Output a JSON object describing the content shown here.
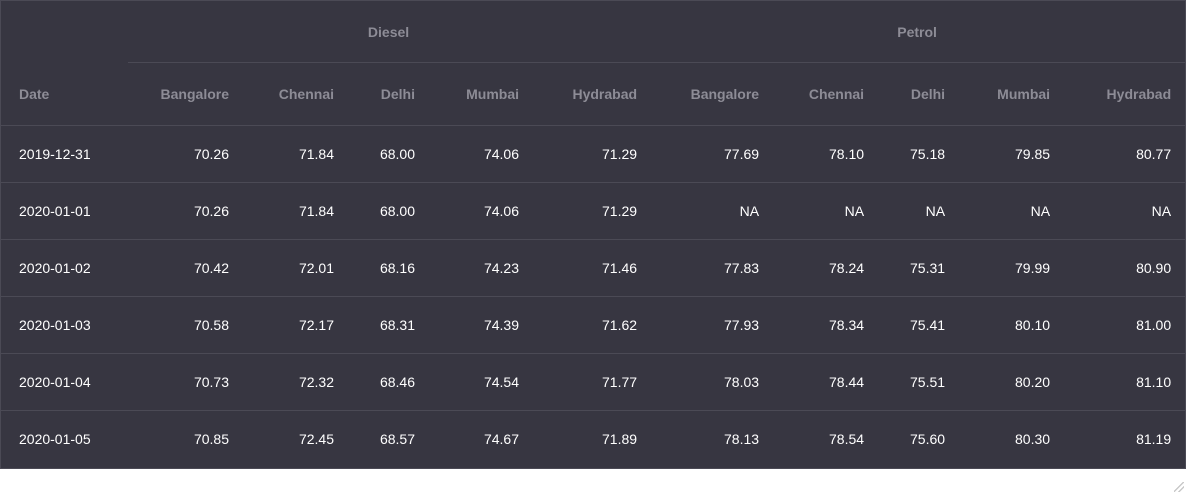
{
  "table": {
    "groups": {
      "diesel": "Diesel",
      "petrol": "Petrol"
    },
    "columns": {
      "date": "Date",
      "diesel": [
        "Bangalore",
        "Chennai",
        "Delhi",
        "Mumbai",
        "Hydrabad"
      ],
      "petrol": [
        "Bangalore",
        "Chennai",
        "Delhi",
        "Mumbai",
        "Hydrabad"
      ]
    },
    "rows": [
      {
        "date": "2019-12-31",
        "diesel": [
          "70.26",
          "71.84",
          "68.00",
          "74.06",
          "71.29"
        ],
        "petrol": [
          "77.69",
          "78.10",
          "75.18",
          "79.85",
          "80.77"
        ]
      },
      {
        "date": "2020-01-01",
        "diesel": [
          "70.26",
          "71.84",
          "68.00",
          "74.06",
          "71.29"
        ],
        "petrol": [
          "NA",
          "NA",
          "NA",
          "NA",
          "NA"
        ]
      },
      {
        "date": "2020-01-02",
        "diesel": [
          "70.42",
          "72.01",
          "68.16",
          "74.23",
          "71.46"
        ],
        "petrol": [
          "77.83",
          "78.24",
          "75.31",
          "79.99",
          "80.90"
        ]
      },
      {
        "date": "2020-01-03",
        "diesel": [
          "70.58",
          "72.17",
          "68.31",
          "74.39",
          "71.62"
        ],
        "petrol": [
          "77.93",
          "78.34",
          "75.41",
          "80.10",
          "81.00"
        ]
      },
      {
        "date": "2020-01-04",
        "diesel": [
          "70.73",
          "72.32",
          "68.46",
          "74.54",
          "71.77"
        ],
        "petrol": [
          "78.03",
          "78.44",
          "75.51",
          "80.20",
          "81.10"
        ]
      },
      {
        "date": "2020-01-05",
        "diesel": [
          "70.85",
          "72.45",
          "68.57",
          "74.67",
          "71.89"
        ],
        "petrol": [
          "78.13",
          "78.54",
          "75.60",
          "80.30",
          "81.19"
        ]
      }
    ]
  },
  "colors": {
    "table_background": "#373641",
    "header_text": "#8d8c96",
    "cell_text": "#ffffff",
    "row_divider": "#4b4a55",
    "page_background": "#ffffff"
  }
}
